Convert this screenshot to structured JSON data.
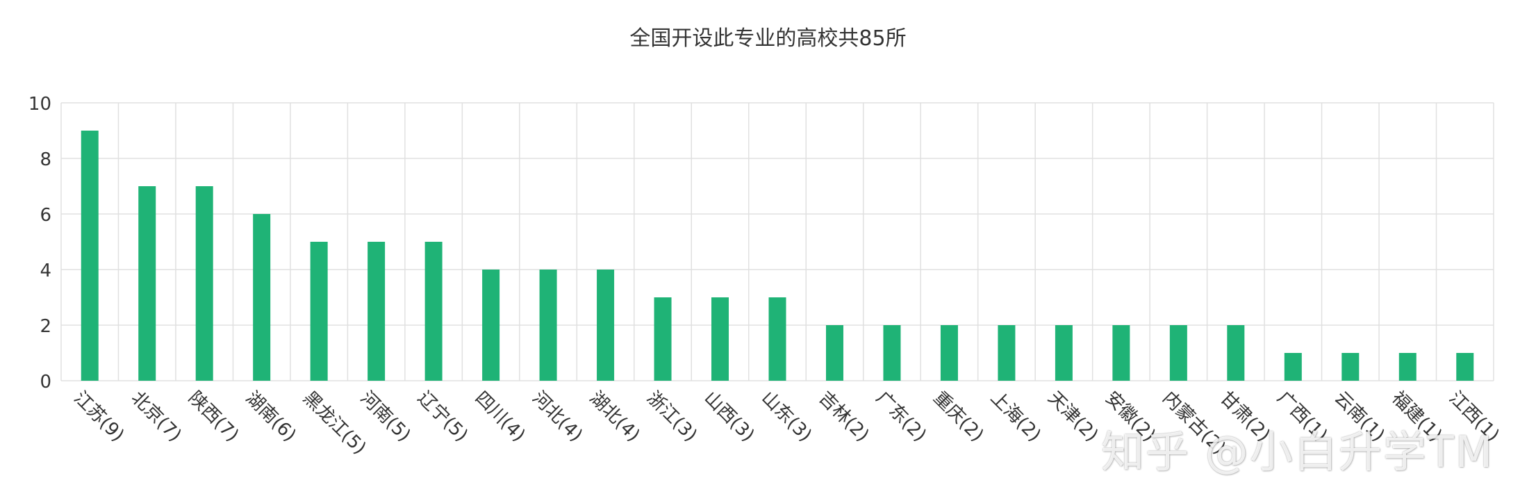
{
  "chart_data": {
    "type": "bar",
    "title": "全国开设此专业的高校共85所",
    "categories": [
      "江苏(9)",
      "北京(7)",
      "陕西(7)",
      "湖南(6)",
      "黑龙江(5)",
      "河南(5)",
      "辽宁(5)",
      "四川(4)",
      "河北(4)",
      "湖北(4)",
      "浙江(3)",
      "山西(3)",
      "山东(3)",
      "吉林(2)",
      "广东(2)",
      "重庆(2)",
      "上海(2)",
      "天津(2)",
      "安徽(2)",
      "内蒙古(2)",
      "甘肃(2)",
      "广西(1)",
      "云南(1)",
      "福建(1)",
      "江西(1)"
    ],
    "values": [
      9,
      7,
      7,
      6,
      5,
      5,
      5,
      4,
      4,
      4,
      3,
      3,
      3,
      2,
      2,
      2,
      2,
      2,
      2,
      2,
      2,
      1,
      1,
      1,
      1
    ],
    "ylim": [
      0,
      10
    ],
    "yticks": [
      "0",
      "2",
      "4",
      "6",
      "8",
      "10"
    ],
    "xlabel": "",
    "ylabel": "",
    "grid": true,
    "bar_color": "#1fb376",
    "grid_color": "#e0e0e0"
  },
  "watermark": "知乎 @小白升学TM"
}
